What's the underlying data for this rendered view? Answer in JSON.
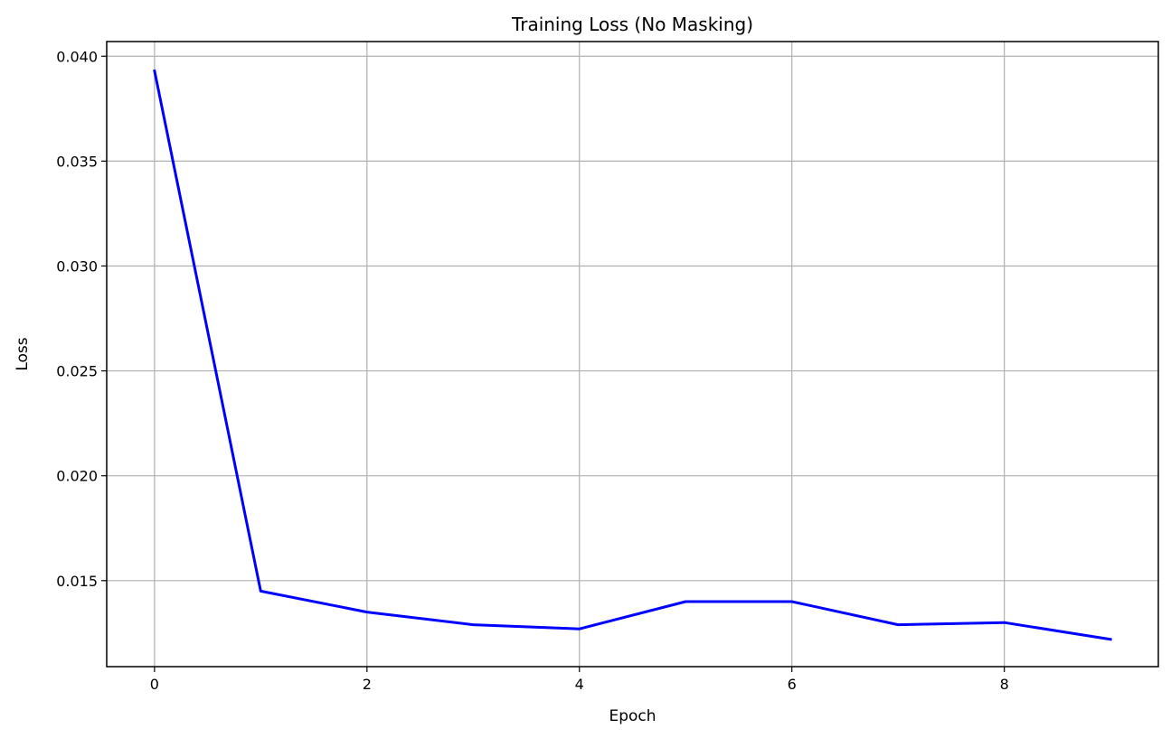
{
  "chart_data": {
    "type": "line",
    "title": "Training Loss (No Masking)",
    "xlabel": "Epoch",
    "ylabel": "Loss",
    "xlim": [
      -0.45,
      9.45
    ],
    "ylim": [
      0.0109,
      0.0407
    ],
    "xticks": [
      0,
      2,
      4,
      6,
      8
    ],
    "yticks": [
      0.015,
      0.02,
      0.025,
      0.03,
      0.035,
      0.04
    ],
    "ytick_labels": [
      "0.015",
      "0.020",
      "0.025",
      "0.030",
      "0.035",
      "0.040"
    ],
    "grid": true,
    "legend": "none",
    "series": [
      {
        "color": "#0000ff",
        "x": [
          0,
          1,
          2,
          3,
          4,
          5,
          6,
          7,
          8,
          9
        ],
        "values": [
          0.0393,
          0.0145,
          0.0135,
          0.0129,
          0.0127,
          0.014,
          0.014,
          0.0129,
          0.013,
          0.0122
        ]
      }
    ]
  }
}
